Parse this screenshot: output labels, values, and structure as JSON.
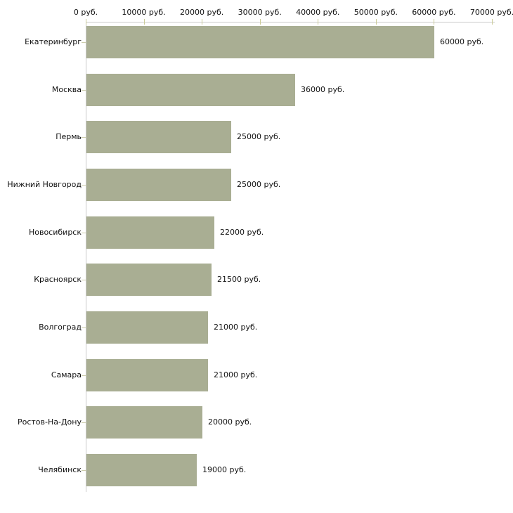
{
  "chart_data": {
    "type": "bar",
    "orientation": "horizontal",
    "title": "",
    "xlabel": "",
    "ylabel": "",
    "categories": [
      "Екатеринбург",
      "Москва",
      "Пермь",
      "Нижний Новгород",
      "Новосибирск",
      "Красноярск",
      "Волгоград",
      "Самара",
      "Ростов-На-Дону",
      "Челябинск"
    ],
    "values": [
      60000,
      36000,
      25000,
      25000,
      22000,
      21500,
      21000,
      21000,
      20000,
      19000
    ],
    "value_labels": [
      "60000 руб.",
      "36000 руб.",
      "25000 руб.",
      "25000 руб.",
      "22000 руб.",
      "21500 руб.",
      "21000 руб.",
      "21000 руб.",
      "20000 руб.",
      "19000 руб."
    ],
    "x_ticks": [
      0,
      10000,
      20000,
      30000,
      40000,
      50000,
      60000,
      70000
    ],
    "x_tick_labels": [
      "0 руб.",
      "10000 руб.",
      "20000 руб.",
      "30000 руб.",
      "40000 руб.",
      "50000 руб.",
      "60000 руб.",
      "70000 руб."
    ],
    "xlim": [
      0,
      70000
    ],
    "grid": false,
    "legend_position": "none",
    "colors": {
      "bar_fill": "#a9ae93",
      "axis_line": "#c9c9c9",
      "tick_mark": "#cccc99",
      "text": "#111111",
      "background": "#ffffff"
    }
  }
}
